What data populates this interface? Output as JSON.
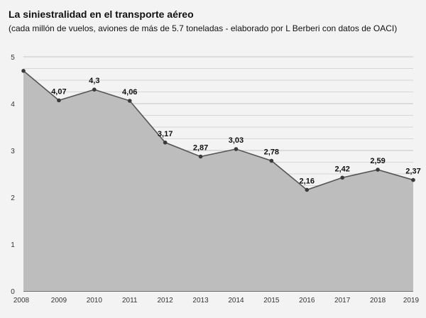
{
  "chart_data": {
    "type": "area",
    "title": "La siniestralidad en el transporte aéreo",
    "subtitle": "(cada millón de vuelos, aviones de más de 5.7 toneladas - elaborado por L Berberi con datos de OACI)",
    "x": [
      "2008",
      "2009",
      "2010",
      "2011",
      "2012",
      "2013",
      "2014",
      "2015",
      "2016",
      "2017",
      "2018",
      "2019"
    ],
    "values": [
      4.7,
      4.07,
      4.3,
      4.06,
      3.17,
      2.87,
      3.03,
      2.78,
      2.16,
      2.42,
      2.59,
      2.37
    ],
    "data_labels": [
      "",
      "4,07",
      "4,3",
      "4,06",
      "3,17",
      "2,87",
      "3,03",
      "2,78",
      "2,16",
      "2,42",
      "2,59",
      "2,37"
    ],
    "yticks": [
      "0",
      "1",
      "2",
      "3",
      "4",
      "5"
    ],
    "ylim": [
      0,
      5
    ],
    "grid": true,
    "colors": {
      "line": "#555555",
      "fill": "#bdbdbd",
      "point": "#3a3a3a",
      "grid": "#d6d6d6"
    }
  }
}
